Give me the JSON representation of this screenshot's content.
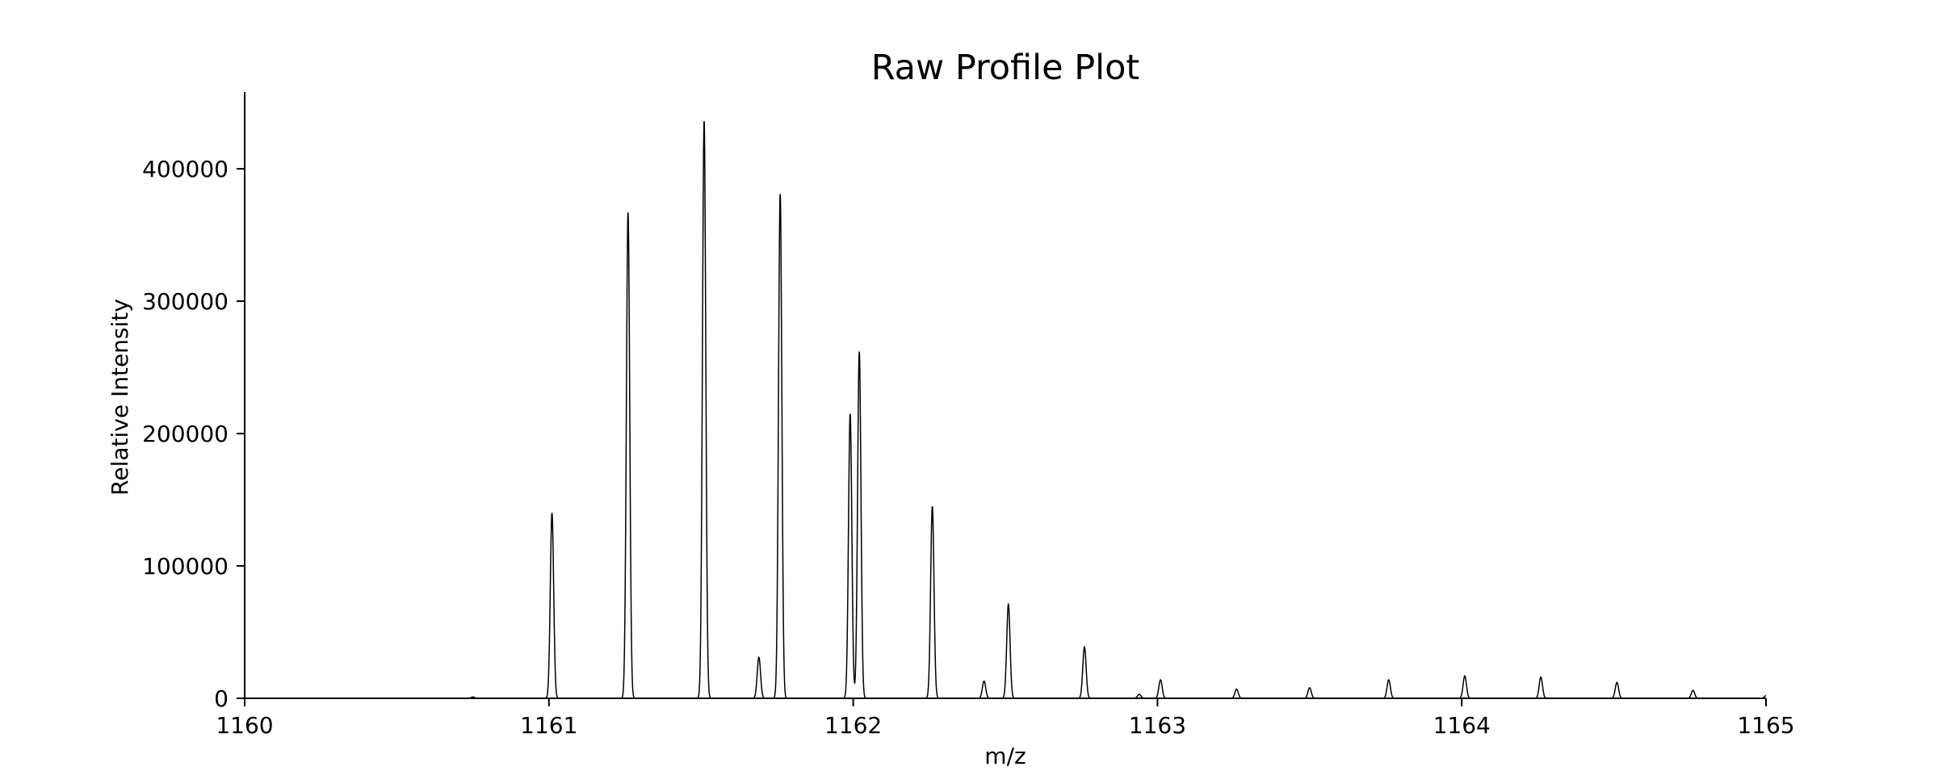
{
  "chart_data": {
    "type": "line",
    "title": "Raw Profile Plot",
    "xlabel": "m/z",
    "ylabel": "Relative Intensity",
    "xlim": [
      1160,
      1165
    ],
    "ylim": [
      0,
      458000
    ],
    "x_ticks": [
      1160,
      1161,
      1162,
      1163,
      1164,
      1165
    ],
    "y_ticks": [
      0,
      100000,
      200000,
      300000,
      400000
    ],
    "grid": false,
    "line_color": "#000000",
    "series": [
      {
        "peaks": [
          {
            "mz": 1160.75,
            "intensity": 1000
          },
          {
            "mz": 1161.01,
            "intensity": 140000
          },
          {
            "mz": 1161.26,
            "intensity": 367000
          },
          {
            "mz": 1161.51,
            "intensity": 436000
          },
          {
            "mz": 1161.69,
            "intensity": 31000
          },
          {
            "mz": 1161.76,
            "intensity": 381000
          },
          {
            "mz": 1161.99,
            "intensity": 215000
          },
          {
            "mz": 1162.02,
            "intensity": 262000
          },
          {
            "mz": 1162.26,
            "intensity": 145000
          },
          {
            "mz": 1162.43,
            "intensity": 13000
          },
          {
            "mz": 1162.51,
            "intensity": 71000
          },
          {
            "mz": 1162.76,
            "intensity": 39000
          },
          {
            "mz": 1162.94,
            "intensity": 3000
          },
          {
            "mz": 1163.01,
            "intensity": 14000
          },
          {
            "mz": 1163.26,
            "intensity": 7000
          },
          {
            "mz": 1163.5,
            "intensity": 8000
          },
          {
            "mz": 1163.76,
            "intensity": 14000
          },
          {
            "mz": 1164.01,
            "intensity": 17000
          },
          {
            "mz": 1164.26,
            "intensity": 16000
          },
          {
            "mz": 1164.51,
            "intensity": 12000
          },
          {
            "mz": 1164.76,
            "intensity": 6000
          },
          {
            "mz": 1165.0,
            "intensity": 2000
          }
        ]
      }
    ]
  }
}
